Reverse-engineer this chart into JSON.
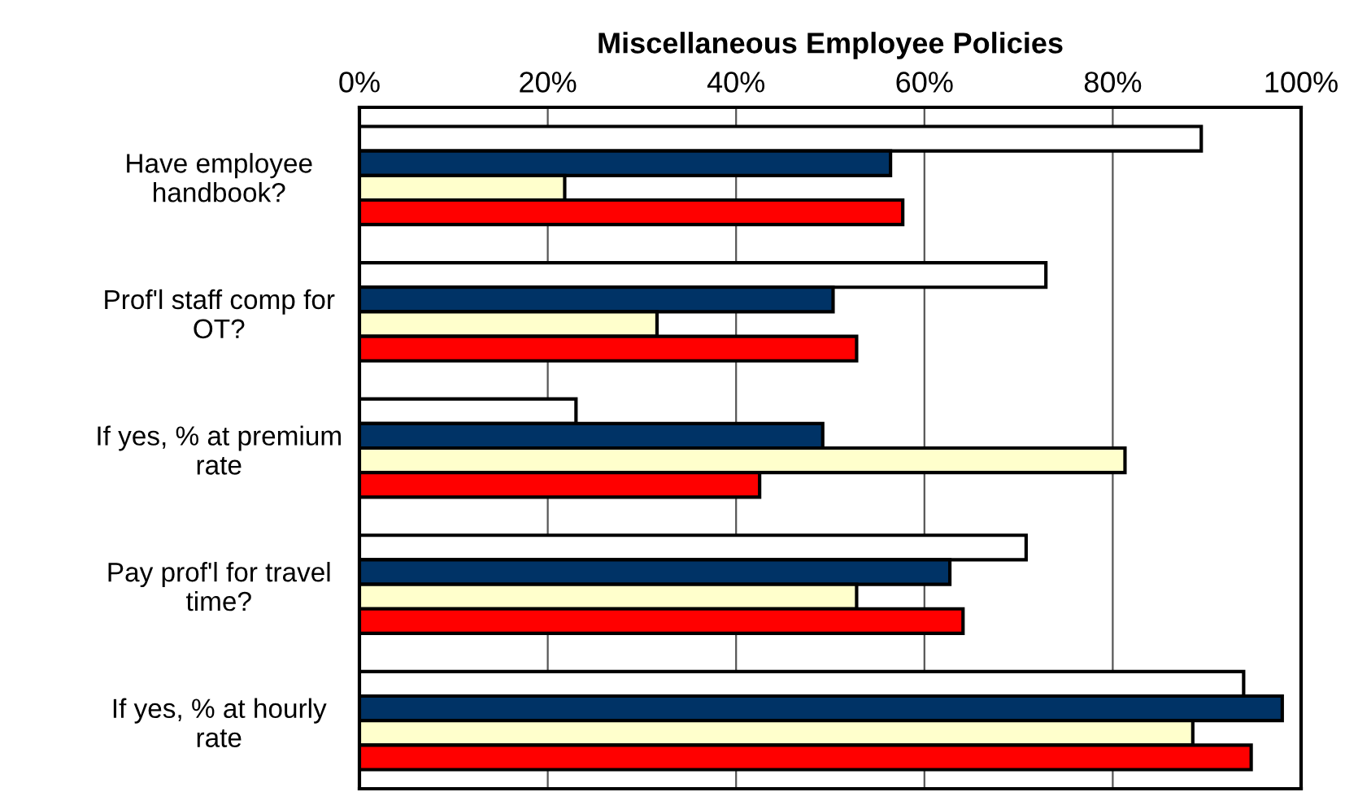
{
  "chart_data": {
    "type": "bar",
    "orientation": "horizontal",
    "title": "Miscellaneous Employee Policies",
    "categories": [
      "Have employee\nhandbook?",
      "Prof'l staff comp for\nOT?",
      "If yes, % at premium\nrate",
      "Pay prof'l for travel\ntime?",
      "If yes, % at hourly\nrate"
    ],
    "series": [
      {
        "color": "#ffffff",
        "values": [
          89.4,
          72.9,
          23.0,
          70.8,
          93.9
        ]
      },
      {
        "color": "#003366",
        "values": [
          56.4,
          50.3,
          49.2,
          62.7,
          98.0
        ]
      },
      {
        "color": "#ffffcc",
        "values": [
          21.8,
          31.6,
          81.3,
          52.8,
          88.5
        ]
      },
      {
        "color": "#ff0000",
        "values": [
          57.7,
          52.8,
          42.5,
          64.1,
          94.7
        ]
      }
    ],
    "xlim": [
      0,
      100
    ],
    "xticks": [
      {
        "value": 0,
        "label": "0%"
      },
      {
        "value": 20,
        "label": "20%"
      },
      {
        "value": 40,
        "label": "40%"
      },
      {
        "value": 60,
        "label": "60%"
      },
      {
        "value": 80,
        "label": "80%"
      },
      {
        "value": 100,
        "label": "100%"
      }
    ],
    "grid": "x"
  }
}
